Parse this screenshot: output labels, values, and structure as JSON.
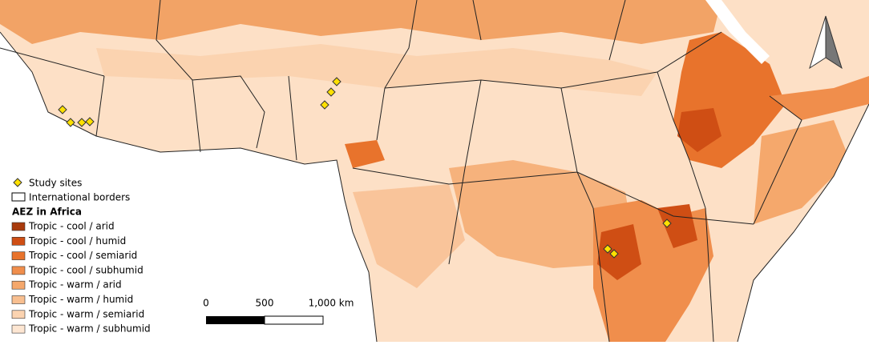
{
  "legend": {
    "items": [
      {
        "label": "Study sites"
      },
      {
        "label": "International borders"
      }
    ],
    "title": "AEZ in Africa",
    "classes": [
      {
        "label": "Tropic - cool / arid",
        "color": "#a83a0c"
      },
      {
        "label": "Tropic - cool / humid",
        "color": "#cf4e14"
      },
      {
        "label": "Tropic - cool / semiarid",
        "color": "#e8732c"
      },
      {
        "label": "Tropic - cool / subhumid",
        "color": "#f08e4c"
      },
      {
        "label": "Tropic - warm / arid",
        "color": "#f5a86c"
      },
      {
        "label": "Tropic - warm / humid",
        "color": "#f8bf90"
      },
      {
        "label": "Tropic - warm / semiarid",
        "color": "#fbd3b0"
      },
      {
        "label": "Tropic - warm / subhumid",
        "color": "#fde6d2"
      }
    ]
  },
  "scale_bar": {
    "labels": [
      "0",
      "500",
      "1,000 km"
    ]
  }
}
